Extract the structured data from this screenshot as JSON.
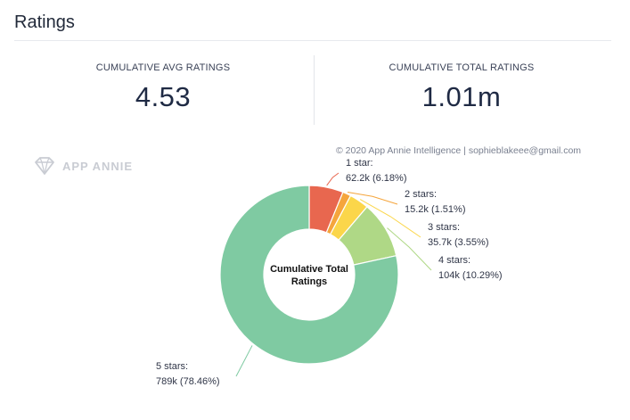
{
  "header": {
    "title": "Ratings"
  },
  "stats": {
    "avg_label": "CUMULATIVE AVG RATINGS",
    "avg_value": "4.53",
    "total_label": "CUMULATIVE TOTAL RATINGS",
    "total_value": "1.01m"
  },
  "watermark": {
    "text": "APP ANNIE",
    "icon": "diamond-logo-icon"
  },
  "copyright": "© 2020 App Annie Intelligence | sophieblakeee@gmail.com",
  "chart_data": {
    "type": "pie",
    "center_label_lines": [
      "Cumulative Total",
      "Ratings"
    ],
    "slices": [
      {
        "name": "1 star",
        "value": 62.2,
        "display": "62.2k (6.18%)",
        "percent": 6.18,
        "color": "#e8674f",
        "label": "1 star:"
      },
      {
        "name": "2 stars",
        "value": 15.2,
        "display": "15.2k (1.51%)",
        "percent": 1.51,
        "color": "#f5a53c",
        "label": "2 stars:"
      },
      {
        "name": "3 stars",
        "value": 35.7,
        "display": "35.7k (3.55%)",
        "percent": 3.55,
        "color": "#fbd64a",
        "label": "3 stars:"
      },
      {
        "name": "4 stars",
        "value": 104,
        "display": "104k (10.29%)",
        "percent": 10.29,
        "color": "#afd886",
        "label": "4 stars:"
      },
      {
        "name": "5 stars",
        "value": 789,
        "display": "789k (78.46%)",
        "percent": 78.46,
        "color": "#7fcaa2",
        "label": "5 stars:"
      }
    ]
  }
}
